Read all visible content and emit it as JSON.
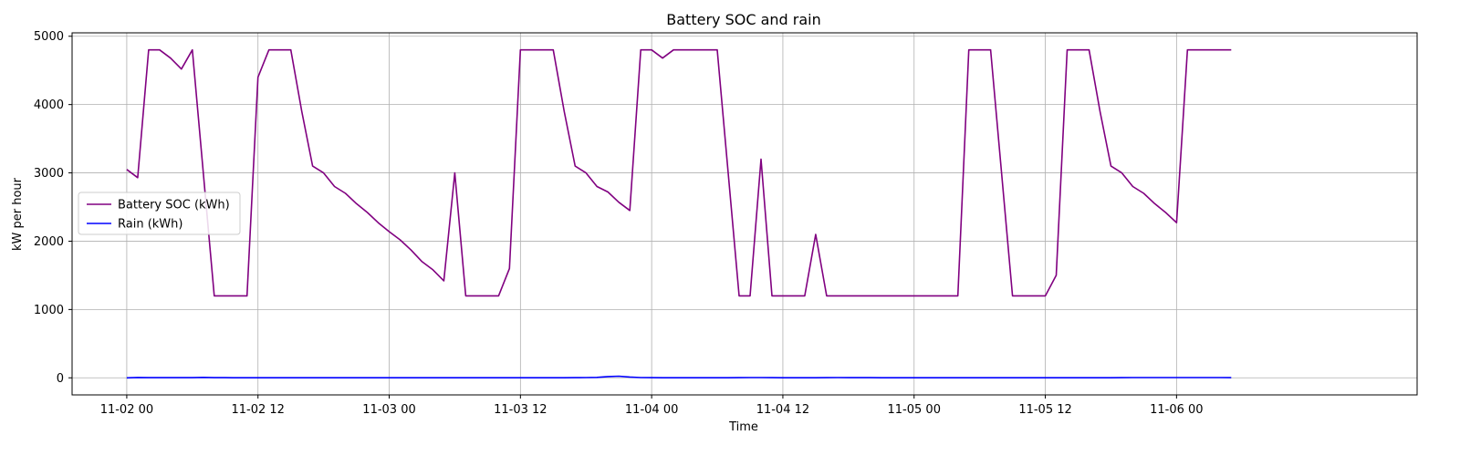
{
  "chart_data": {
    "type": "line",
    "title": "Battery SOC and rain",
    "xlabel": "Time",
    "ylabel": "kW per hour",
    "x_start": "2023-11-02 00:00",
    "x_step_hours": 1,
    "xlim": [
      "2023-11-01 19:00",
      "2023-11-06 22:00"
    ],
    "ylim": [
      -250,
      5050
    ],
    "x_ticks": [
      {
        "at": "2023-11-02 00:00",
        "label": "11-02 00"
      },
      {
        "at": "2023-11-02 12:00",
        "label": "11-02 12"
      },
      {
        "at": "2023-11-03 00:00",
        "label": "11-03 00"
      },
      {
        "at": "2023-11-03 12:00",
        "label": "11-03 12"
      },
      {
        "at": "2023-11-04 00:00",
        "label": "11-04 00"
      },
      {
        "at": "2023-11-04 12:00",
        "label": "11-04 12"
      },
      {
        "at": "2023-11-05 00:00",
        "label": "11-05 00"
      },
      {
        "at": "2023-11-05 12:00",
        "label": "11-05 12"
      },
      {
        "at": "2023-11-06 00:00",
        "label": "11-06 00"
      }
    ],
    "y_ticks": [
      0,
      1000,
      2000,
      3000,
      4000,
      5000
    ],
    "grid": true,
    "legend": "center-left",
    "series": [
      {
        "name": "Battery SOC (kWh)",
        "color": "#800080",
        "values": [
          3050,
          2930,
          4800,
          4800,
          4680,
          4520,
          4800,
          3000,
          1200,
          1200,
          1200,
          1200,
          4400,
          4800,
          4800,
          4800,
          3900,
          3100,
          3000,
          2800,
          2700,
          2550,
          2420,
          2270,
          2140,
          2020,
          1870,
          1700,
          1580,
          1420,
          3000,
          1200,
          1200,
          1200,
          1200,
          1600,
          4800,
          4800,
          4800,
          4800,
          3900,
          3100,
          3000,
          2800,
          2720,
          2570,
          2450,
          4800,
          4800,
          4680,
          4800,
          4800,
          4800,
          4800,
          4800,
          3000,
          1200,
          1200,
          3200,
          1200,
          1200,
          1200,
          1200,
          2100,
          1200,
          1200,
          1200,
          1200,
          1200,
          1200,
          1200,
          1200,
          1200,
          1200,
          1200,
          1200,
          1200,
          4800,
          4800,
          4800,
          3000,
          1200,
          1200,
          1200,
          1200,
          1500,
          4800,
          4800,
          4800,
          3900,
          3100,
          3000,
          2800,
          2700,
          2550,
          2420,
          2270,
          4800,
          4800,
          4800,
          4800,
          4800
        ]
      },
      {
        "name": "Rain (kWh)",
        "color": "#0000ff",
        "values": [
          0,
          5,
          2,
          2,
          2,
          2,
          2,
          6,
          2,
          2,
          1,
          1,
          1,
          1,
          1,
          1,
          1,
          1,
          1,
          1,
          1,
          1,
          1,
          1,
          1,
          1,
          1,
          1,
          1,
          1,
          1,
          1,
          1,
          1,
          1,
          1,
          1,
          1,
          1,
          1,
          1,
          2,
          3,
          6,
          18,
          24,
          12,
          4,
          2,
          1,
          1,
          1,
          1,
          1,
          1,
          1,
          2,
          3,
          3,
          2,
          1,
          1,
          1,
          1,
          2,
          3,
          2,
          2,
          2,
          1,
          1,
          1,
          1,
          1,
          1,
          1,
          1,
          1,
          1,
          1,
          1,
          1,
          1,
          1,
          1,
          1,
          1,
          1,
          1,
          1,
          1,
          2,
          3,
          3,
          3,
          3,
          3,
          3,
          3,
          3,
          3,
          2
        ]
      }
    ]
  }
}
